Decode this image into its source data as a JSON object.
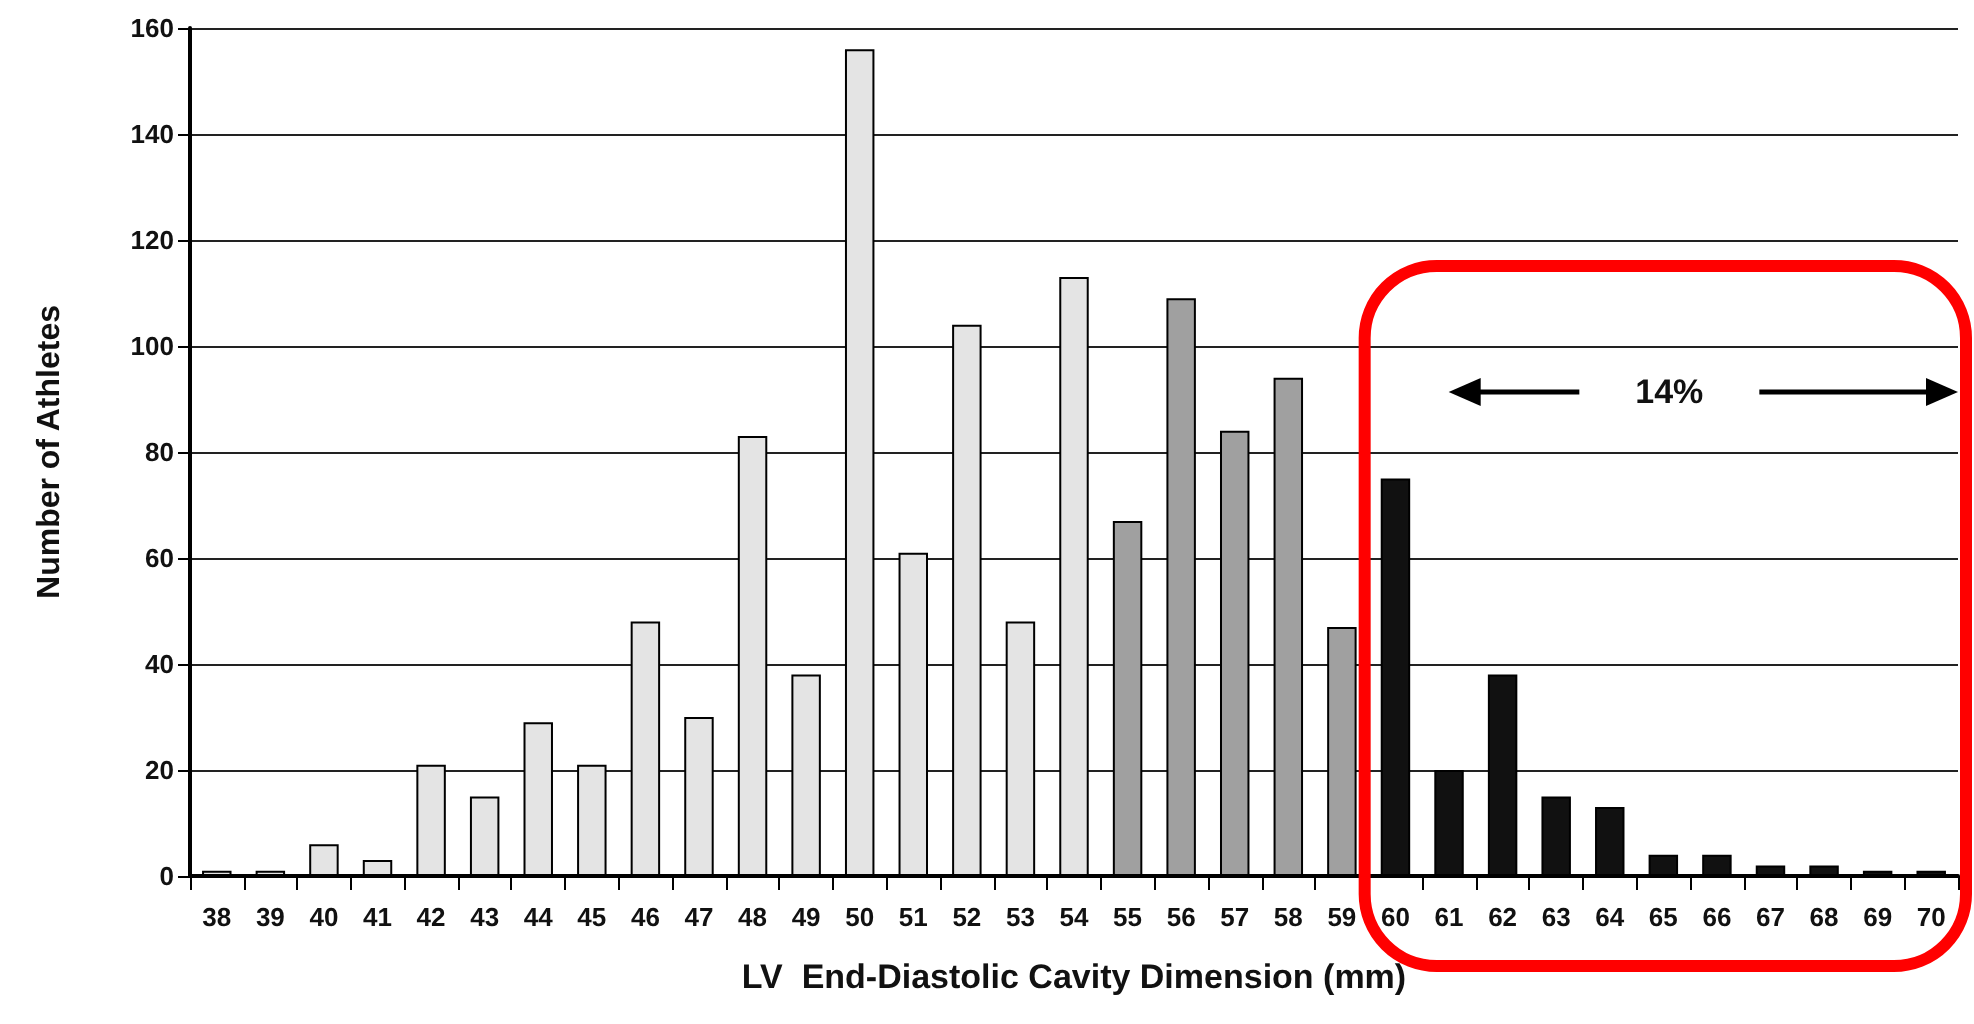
{
  "chart_data": {
    "type": "bar",
    "xlabel": "LV  End-Diastolic Cavity Dimension (mm)",
    "ylabel": "Number of Athletes",
    "categories": [
      "38",
      "39",
      "40",
      "41",
      "42",
      "43",
      "44",
      "45",
      "46",
      "47",
      "48",
      "49",
      "50",
      "51",
      "52",
      "53",
      "54",
      "55",
      "56",
      "57",
      "58",
      "59",
      "60",
      "61",
      "62",
      "63",
      "64",
      "65",
      "66",
      "67",
      "68",
      "69",
      "70"
    ],
    "values": [
      1,
      1,
      6,
      3,
      21,
      15,
      29,
      21,
      48,
      30,
      83,
      38,
      156,
      61,
      104,
      48,
      113,
      67,
      109,
      84,
      94,
      47,
      75,
      20,
      38,
      15,
      13,
      4,
      4,
      2,
      2,
      1,
      1
    ],
    "colors": [
      "#e4e4e4",
      "#e4e4e4",
      "#e4e4e4",
      "#e4e4e4",
      "#e4e4e4",
      "#e4e4e4",
      "#e4e4e4",
      "#e4e4e4",
      "#e4e4e4",
      "#e4e4e4",
      "#e4e4e4",
      "#e4e4e4",
      "#e4e4e4",
      "#e4e4e4",
      "#e4e4e4",
      "#e4e4e4",
      "#e4e4e4",
      "#a0a0a0",
      "#a0a0a0",
      "#a0a0a0",
      "#a0a0a0",
      "#a0a0a0",
      "#111111",
      "#111111",
      "#111111",
      "#111111",
      "#111111",
      "#111111",
      "#111111",
      "#111111",
      "#111111",
      "#111111",
      "#111111"
    ],
    "ylim": [
      0,
      160
    ],
    "yticks": [
      0,
      20,
      40,
      60,
      80,
      100,
      120,
      140,
      160
    ],
    "grid": "y",
    "annotations": [
      "14%"
    ]
  }
}
